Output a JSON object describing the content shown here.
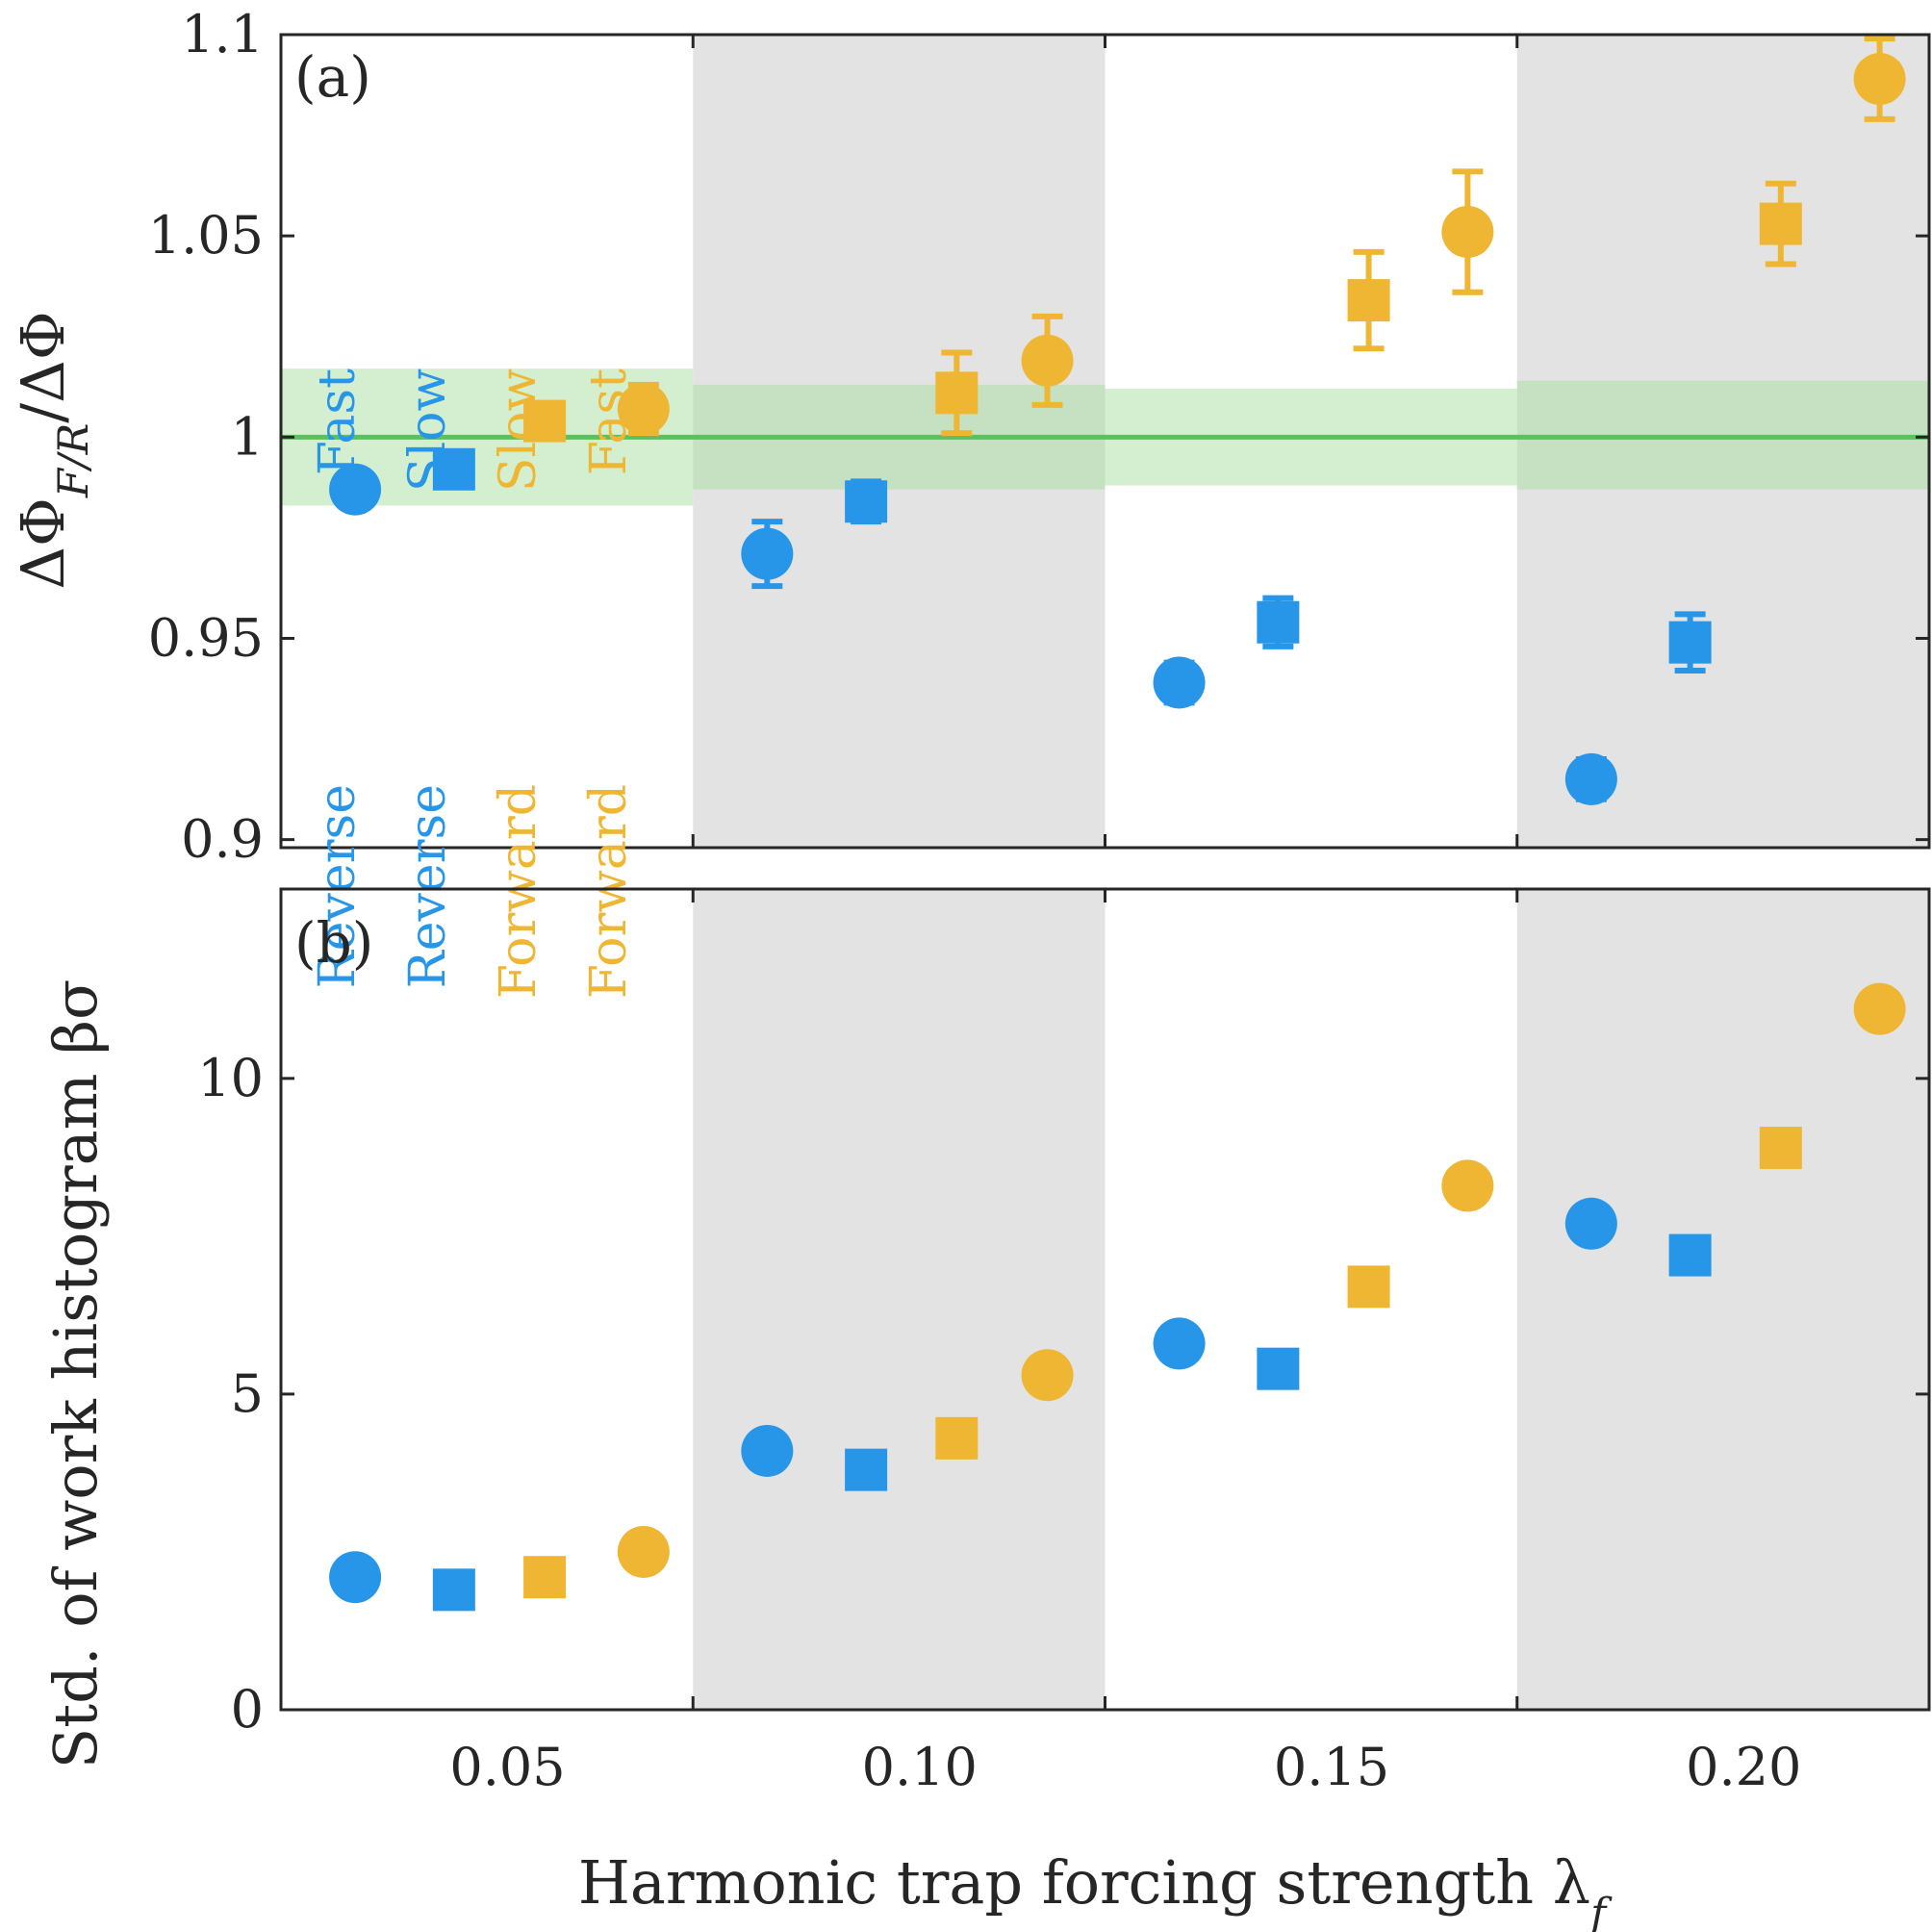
{
  "colors": {
    "reverse": "#2896e8",
    "forward": "#efb634",
    "reference_line": "#5cc05c",
    "reference_band": "#a8dfa0",
    "shade": "#e3e3e3"
  },
  "chart_data": [
    {
      "type": "scatter",
      "panel_label": "(a)",
      "ylabel": "ΔΦ_{F/R}/ΔΦ",
      "xlim": [
        0.0225,
        0.2225
      ],
      "ylim": [
        0.898,
        1.1
      ],
      "yticks": [
        "0.9",
        "0.95",
        "1",
        "1.05",
        "1.1"
      ],
      "reference_line": 1.0,
      "group_bands": [
        {
          "x_range": [
            0.0225,
            0.0725
          ],
          "y_range": [
            0.983,
            1.017
          ]
        },
        {
          "x_range": [
            0.0725,
            0.1225
          ],
          "y_range": [
            0.987,
            1.013
          ]
        },
        {
          "x_range": [
            0.1225,
            0.1725
          ],
          "y_range": [
            0.988,
            1.012
          ]
        },
        {
          "x_range": [
            0.1725,
            0.2225
          ],
          "y_range": [
            0.987,
            1.014
          ]
        }
      ],
      "series": [
        {
          "name": "Reverse Fast",
          "marker": "circle",
          "color": "reverse",
          "x": [
            0.0315,
            0.0815,
            0.1315,
            0.1815
          ],
          "y": [
            0.987,
            0.971,
            0.939,
            0.915
          ],
          "err": [
            0.004,
            0.008,
            0.005,
            0.005
          ]
        },
        {
          "name": "Reverse Slow",
          "marker": "square",
          "color": "reverse",
          "x": [
            0.0435,
            0.0935,
            0.1435,
            0.1935
          ],
          "y": [
            0.992,
            0.984,
            0.954,
            0.949
          ],
          "err": [
            0.004,
            0.005,
            0.006,
            0.007
          ]
        },
        {
          "name": "Forward Slow",
          "marker": "square",
          "color": "forward",
          "x": [
            0.0545,
            0.1045,
            0.1545,
            0.2045
          ],
          "y": [
            1.004,
            1.011,
            1.034,
            1.053
          ],
          "err": [
            0.003,
            0.01,
            0.012,
            0.01
          ]
        },
        {
          "name": "Forward Fast",
          "marker": "circle",
          "color": "forward",
          "x": [
            0.0665,
            0.1155,
            0.1665,
            0.2165
          ],
          "y": [
            1.007,
            1.019,
            1.051,
            1.089
          ],
          "err": [
            0.006,
            0.011,
            0.015,
            0.01
          ]
        }
      ],
      "legend": [
        {
          "line1": "Fast",
          "line2": "Reverse",
          "color": "reverse"
        },
        {
          "line1": "Slow",
          "line2": "Reverse",
          "color": "reverse"
        },
        {
          "line1": "Slow",
          "line2": "Forward",
          "color": "forward"
        },
        {
          "line1": "Fast",
          "line2": "Forward",
          "color": "forward"
        }
      ]
    },
    {
      "type": "scatter",
      "panel_label": "(b)",
      "ylabel": "Std. of work histogram βσ",
      "xlabel": "Harmonic trap forcing strength λ_f",
      "xlim": [
        0.0225,
        0.2225
      ],
      "ylim": [
        0,
        13
      ],
      "yticks": [
        "0",
        "5",
        "10"
      ],
      "xticks": [
        "0.05",
        "0.10",
        "0.15",
        "0.20"
      ],
      "series": [
        {
          "name": "Reverse Fast",
          "marker": "circle",
          "color": "reverse",
          "x": [
            0.0315,
            0.0815,
            0.1315,
            0.1815
          ],
          "y": [
            2.1,
            4.1,
            5.8,
            7.7
          ]
        },
        {
          "name": "Reverse Slow",
          "marker": "square",
          "color": "reverse",
          "x": [
            0.0435,
            0.0935,
            0.1435,
            0.1935
          ],
          "y": [
            1.9,
            3.8,
            5.4,
            7.2
          ]
        },
        {
          "name": "Forward Slow",
          "marker": "square",
          "color": "forward",
          "x": [
            0.0545,
            0.1045,
            0.1545,
            0.2045
          ],
          "y": [
            2.1,
            4.3,
            6.7,
            8.9
          ]
        },
        {
          "name": "Forward Fast",
          "marker": "circle",
          "color": "forward",
          "x": [
            0.0665,
            0.1155,
            0.1665,
            0.2165
          ],
          "y": [
            2.5,
            5.3,
            8.3,
            11.1
          ]
        }
      ]
    }
  ]
}
